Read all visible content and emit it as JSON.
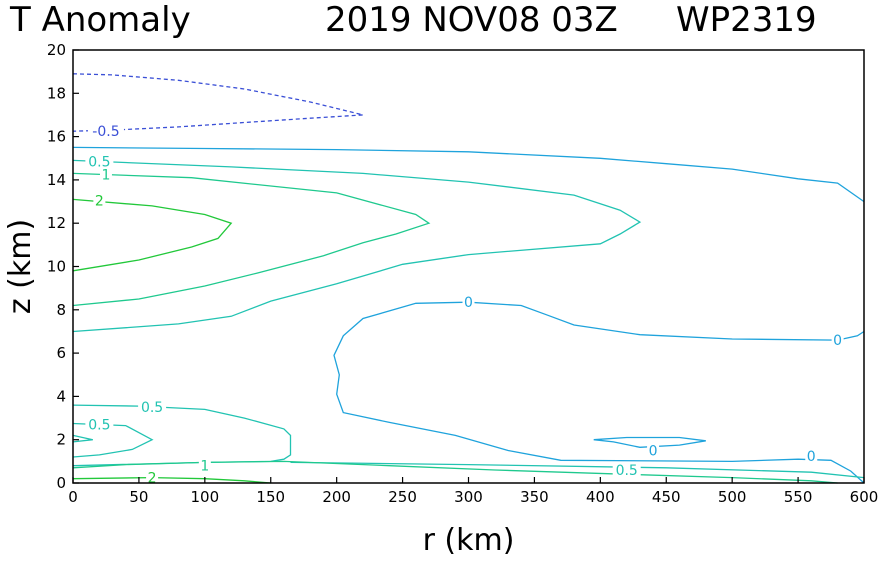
{
  "chart_data": {
    "type": "contour",
    "title": "T Anomaly",
    "datetime": "2019 NOV08 03Z",
    "storm_id": "WP2319",
    "xlabel": "r (km)",
    "ylabel": "z (km)",
    "xlim": [
      0,
      600
    ],
    "ylim": [
      0,
      20
    ],
    "xticks": [
      "0",
      "50",
      "100",
      "150",
      "200",
      "250",
      "300",
      "350",
      "400",
      "450",
      "500",
      "550",
      "600"
    ],
    "yticks": [
      "0",
      "2",
      "4",
      "6",
      "8",
      "10",
      "12",
      "14",
      "16",
      "18",
      "20"
    ],
    "levels": [
      {
        "value": -0.5,
        "color": "#3a4fd6",
        "dashed": true
      },
      {
        "value": 0,
        "color": "#1fa3dc",
        "dashed": false
      },
      {
        "value": 0.5,
        "color": "#22c3b2",
        "dashed": false
      },
      {
        "value": 1,
        "color": "#1fc98e",
        "dashed": false
      },
      {
        "value": 2,
        "color": "#22c83a",
        "dashed": false
      }
    ],
    "contours": [
      {
        "level": -0.5,
        "points": [
          [
            0,
            18.9
          ],
          [
            30,
            18.85
          ],
          [
            80,
            18.6
          ],
          [
            130,
            18.2
          ],
          [
            180,
            17.6
          ],
          [
            220,
            17.0
          ],
          [
            180,
            16.85
          ],
          [
            130,
            16.65
          ],
          [
            80,
            16.45
          ],
          [
            30,
            16.3
          ],
          [
            0,
            16.25
          ]
        ]
      },
      {
        "level": 0,
        "points": [
          [
            0,
            15.5
          ],
          [
            100,
            15.45
          ],
          [
            200,
            15.4
          ],
          [
            300,
            15.3
          ],
          [
            400,
            15.0
          ],
          [
            450,
            14.75
          ],
          [
            500,
            14.5
          ],
          [
            550,
            14.05
          ],
          [
            580,
            13.85
          ],
          [
            600,
            13.0
          ]
        ]
      },
      {
        "level": 0,
        "points": [
          [
            600,
            7.0
          ],
          [
            595,
            6.8
          ],
          [
            580,
            6.6
          ],
          [
            500,
            6.65
          ],
          [
            430,
            6.85
          ],
          [
            380,
            7.3
          ],
          [
            360,
            7.75
          ],
          [
            340,
            8.2
          ],
          [
            300,
            8.35
          ],
          [
            260,
            8.3
          ],
          [
            220,
            7.6
          ],
          [
            205,
            6.8
          ],
          [
            198,
            5.9
          ],
          [
            202,
            5.0
          ],
          [
            200,
            4.1
          ],
          [
            205,
            3.25
          ],
          [
            240,
            2.8
          ],
          [
            290,
            2.2
          ],
          [
            330,
            1.5
          ],
          [
            370,
            1.05
          ],
          [
            500,
            1.0
          ],
          [
            550,
            1.1
          ],
          [
            575,
            1.05
          ],
          [
            590,
            0.55
          ],
          [
            600,
            0
          ]
        ]
      },
      {
        "level": 0,
        "points": [
          [
            395,
            2.0
          ],
          [
            420,
            2.1
          ],
          [
            460,
            2.1
          ],
          [
            480,
            1.95
          ],
          [
            460,
            1.75
          ],
          [
            430,
            1.65
          ],
          [
            410,
            1.9
          ],
          [
            395,
            2.0
          ]
        ]
      },
      {
        "level": 0.5,
        "points": [
          [
            0,
            14.9
          ],
          [
            120,
            14.6
          ],
          [
            220,
            14.3
          ],
          [
            300,
            13.9
          ],
          [
            380,
            13.3
          ],
          [
            415,
            12.6
          ],
          [
            430,
            12.05
          ],
          [
            415,
            11.5
          ],
          [
            400,
            11.05
          ],
          [
            300,
            10.55
          ],
          [
            250,
            10.1
          ],
          [
            200,
            9.2
          ],
          [
            150,
            8.4
          ],
          [
            120,
            7.7
          ],
          [
            80,
            7.35
          ],
          [
            0,
            7.0
          ]
        ]
      },
      {
        "level": 0.5,
        "points": [
          [
            0,
            3.6
          ],
          [
            50,
            3.55
          ],
          [
            100,
            3.4
          ],
          [
            130,
            3.0
          ],
          [
            160,
            2.5
          ],
          [
            165,
            2.2
          ],
          [
            165,
            1.3
          ],
          [
            160,
            1.1
          ],
          [
            150,
            1.0
          ],
          [
            100,
            0.95
          ],
          [
            0,
            0.8
          ]
        ]
      },
      {
        "level": 0.5,
        "points": [
          [
            0,
            2.75
          ],
          [
            40,
            2.65
          ],
          [
            60,
            2.0
          ],
          [
            45,
            1.55
          ],
          [
            20,
            1.3
          ],
          [
            0,
            1.2
          ]
        ]
      },
      {
        "level": 0.5,
        "points": [
          [
            0,
            2.2
          ],
          [
            15,
            2.0
          ],
          [
            0,
            1.9
          ]
        ]
      },
      {
        "level": 0.5,
        "points": [
          [
            165,
            0.95
          ],
          [
            300,
            0.85
          ],
          [
            450,
            0.7
          ],
          [
            560,
            0.5
          ],
          [
            600,
            0.25
          ]
        ]
      },
      {
        "level": 1,
        "points": [
          [
            0,
            14.3
          ],
          [
            90,
            14.1
          ],
          [
            200,
            13.4
          ],
          [
            260,
            12.4
          ],
          [
            270,
            12.0
          ],
          [
            245,
            11.5
          ],
          [
            220,
            11.1
          ],
          [
            190,
            10.5
          ],
          [
            140,
            9.7
          ],
          [
            100,
            9.1
          ],
          [
            50,
            8.5
          ],
          [
            0,
            8.2
          ]
        ]
      },
      {
        "level": 1,
        "points": [
          [
            0,
            0.7
          ],
          [
            40,
            0.85
          ],
          [
            100,
            0.95
          ],
          [
            160,
            1.0
          ],
          [
            240,
            0.8
          ],
          [
            320,
            0.6
          ],
          [
            420,
            0.4
          ],
          [
            500,
            0.25
          ],
          [
            560,
            0.1
          ],
          [
            580,
            0
          ]
        ]
      },
      {
        "level": 2,
        "points": [
          [
            0,
            13.1
          ],
          [
            60,
            12.8
          ],
          [
            100,
            12.4
          ],
          [
            120,
            12.0
          ],
          [
            110,
            11.3
          ],
          [
            90,
            10.9
          ],
          [
            50,
            10.3
          ],
          [
            0,
            9.8
          ]
        ]
      },
      {
        "level": 2,
        "points": [
          [
            0,
            0.2
          ],
          [
            60,
            0.25
          ],
          [
            100,
            0.2
          ],
          [
            130,
            0.1
          ],
          [
            150,
            0
          ]
        ]
      }
    ],
    "contour_labels": [
      {
        "text": "-0.5",
        "level": -0.5,
        "x": 25,
        "y": 16.25
      },
      {
        "text": "0.5",
        "level": 0.5,
        "x": 20,
        "y": 14.85
      },
      {
        "text": "1",
        "level": 1,
        "x": 25,
        "y": 14.25
      },
      {
        "text": "2",
        "level": 2,
        "x": 20,
        "y": 13.05
      },
      {
        "text": "0",
        "level": 0,
        "x": 300,
        "y": 8.35
      },
      {
        "text": "0",
        "level": 0,
        "x": 580,
        "y": 6.6
      },
      {
        "text": "0.5",
        "level": 0.5,
        "x": 60,
        "y": 3.5
      },
      {
        "text": "0.5",
        "level": 0.5,
        "x": 20,
        "y": 2.7
      },
      {
        "text": "0",
        "level": 0,
        "x": 440,
        "y": 1.5
      },
      {
        "text": "1",
        "level": 1,
        "x": 100,
        "y": 0.8
      },
      {
        "text": "0.5",
        "level": 0.5,
        "x": 420,
        "y": 0.6
      },
      {
        "text": "0",
        "level": 0,
        "x": 560,
        "y": 1.25
      },
      {
        "text": "2",
        "level": 2,
        "x": 60,
        "y": 0.25
      }
    ]
  }
}
